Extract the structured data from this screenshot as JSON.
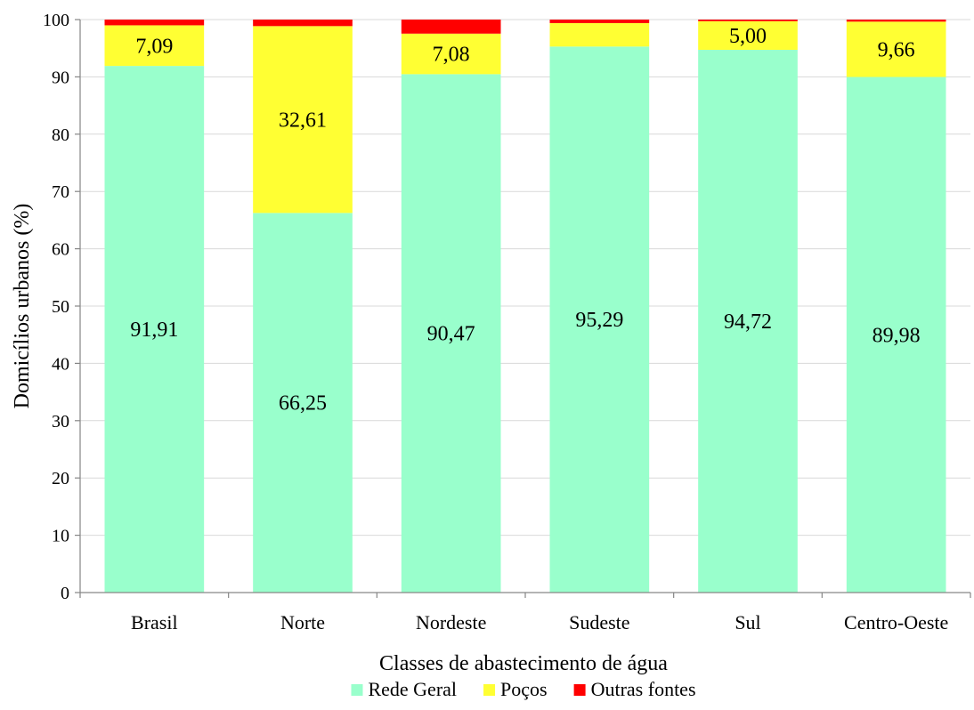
{
  "chart_data": {
    "type": "bar",
    "stacked": true,
    "title": "",
    "xlabel": "Classes de abastecimento de água",
    "ylabel": "Domicílios urbanos (%)",
    "ylim": [
      0,
      100
    ],
    "yticks": [
      "0",
      "10",
      "20",
      "30",
      "40",
      "50",
      "60",
      "70",
      "80",
      "90",
      "100"
    ],
    "grid": true,
    "legend_position": "bottom",
    "categories": [
      "Brasil",
      "Norte",
      "Nordeste",
      "Sudeste",
      "Sul",
      "Centro-Oeste"
    ],
    "series": [
      {
        "name": "Rede Geral",
        "color": "#99ffcc",
        "values": [
          91.91,
          66.25,
          90.47,
          95.29,
          94.72,
          89.98
        ],
        "labels": [
          "91,91",
          "66,25",
          "90,47",
          "95,29",
          "94,72",
          "89,98"
        ]
      },
      {
        "name": "Poços",
        "color": "#ffff33",
        "values": [
          7.09,
          32.61,
          7.08,
          4.1,
          5.0,
          9.66
        ],
        "labels": [
          "7,09",
          "32,61",
          "7,08",
          "",
          "5,00",
          "9,66"
        ]
      },
      {
        "name": "Outras fontes",
        "color": "#ff0000",
        "values": [
          1.0,
          1.14,
          2.45,
          0.61,
          0.28,
          0.36
        ],
        "labels": [
          "",
          "",
          "",
          "",
          "",
          ""
        ]
      }
    ]
  }
}
